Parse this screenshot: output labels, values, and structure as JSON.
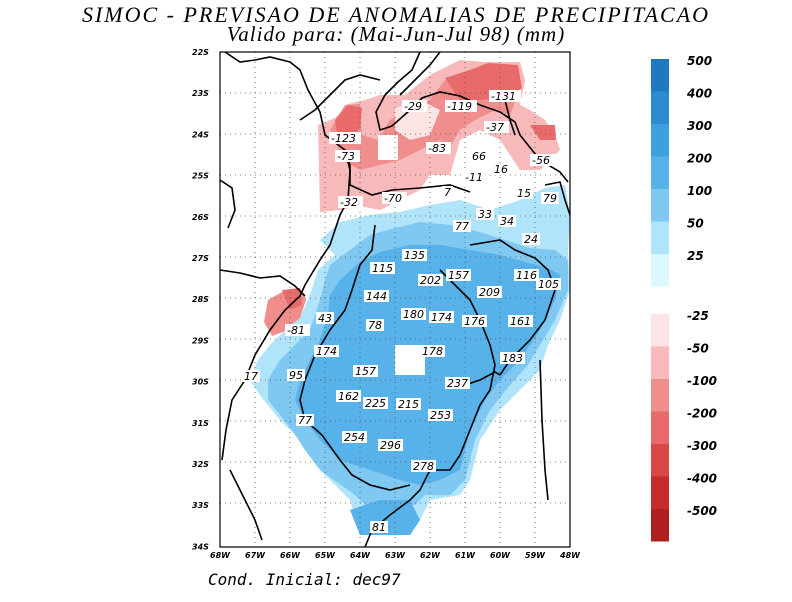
{
  "title": "SIMOC - PREVISAO DE ANOMALIAS DE PRECIPITACAO",
  "subtitle": "Valido para: (Mai-Jun-Jul 98) (mm)",
  "footer": "Cond. Inicial: dec97",
  "axes": {
    "lat_labels": [
      "22S",
      "23S",
      "24S",
      "25S",
      "26S",
      "27S",
      "28S",
      "29S",
      "30S",
      "31S",
      "32S",
      "33S",
      "34S"
    ],
    "lon_labels": [
      "68W",
      "67W",
      "66W",
      "65W",
      "64W",
      "63W",
      "62W",
      "61W",
      "60W",
      "59W",
      "48W"
    ]
  },
  "colorbar_positive": {
    "labels": [
      "500",
      "400",
      "300",
      "200",
      "100",
      "50",
      "25"
    ],
    "colors": [
      "#1f78c0",
      "#2e8bd0",
      "#3ea0dd",
      "#56b2e8",
      "#7ec8f2",
      "#b0e4fa",
      "#dcf8ff"
    ]
  },
  "colorbar_negative": {
    "labels": [
      "-25",
      "-50",
      "-100",
      "-200",
      "-300",
      "-400",
      "-500"
    ],
    "colors": [
      "#fde4e4",
      "#f7b9b9",
      "#f08e8e",
      "#e86a6a",
      "#d94646",
      "#c52b2b",
      "#b01f1f"
    ]
  },
  "values": [
    {
      "text": "-29"
    },
    {
      "text": "-119"
    },
    {
      "text": "-131"
    },
    {
      "text": "-123"
    },
    {
      "text": "-37"
    },
    {
      "text": "-73"
    },
    {
      "text": "-83"
    },
    {
      "text": "66"
    },
    {
      "text": "-56"
    },
    {
      "text": "16"
    },
    {
      "text": "-11"
    },
    {
      "text": "7"
    },
    {
      "text": "-70"
    },
    {
      "text": "15"
    },
    {
      "text": "79"
    },
    {
      "text": "-32"
    },
    {
      "text": "33"
    },
    {
      "text": "34"
    },
    {
      "text": "77"
    },
    {
      "text": "24"
    },
    {
      "text": "135"
    },
    {
      "text": "115"
    },
    {
      "text": "157"
    },
    {
      "text": "116"
    },
    {
      "text": "202"
    },
    {
      "text": "105"
    },
    {
      "text": "209"
    },
    {
      "text": "144"
    },
    {
      "text": "180"
    },
    {
      "text": "174"
    },
    {
      "text": "176"
    },
    {
      "text": "161"
    },
    {
      "text": "43"
    },
    {
      "text": "-81"
    },
    {
      "text": "78"
    },
    {
      "text": "174"
    },
    {
      "text": "178"
    },
    {
      "text": "183"
    },
    {
      "text": "95"
    },
    {
      "text": "157"
    },
    {
      "text": "17"
    },
    {
      "text": "237"
    },
    {
      "text": "162"
    },
    {
      "text": "225"
    },
    {
      "text": "215"
    },
    {
      "text": "77"
    },
    {
      "text": "253"
    },
    {
      "text": "254"
    },
    {
      "text": "296"
    },
    {
      "text": "278"
    },
    {
      "text": "81"
    }
  ]
}
